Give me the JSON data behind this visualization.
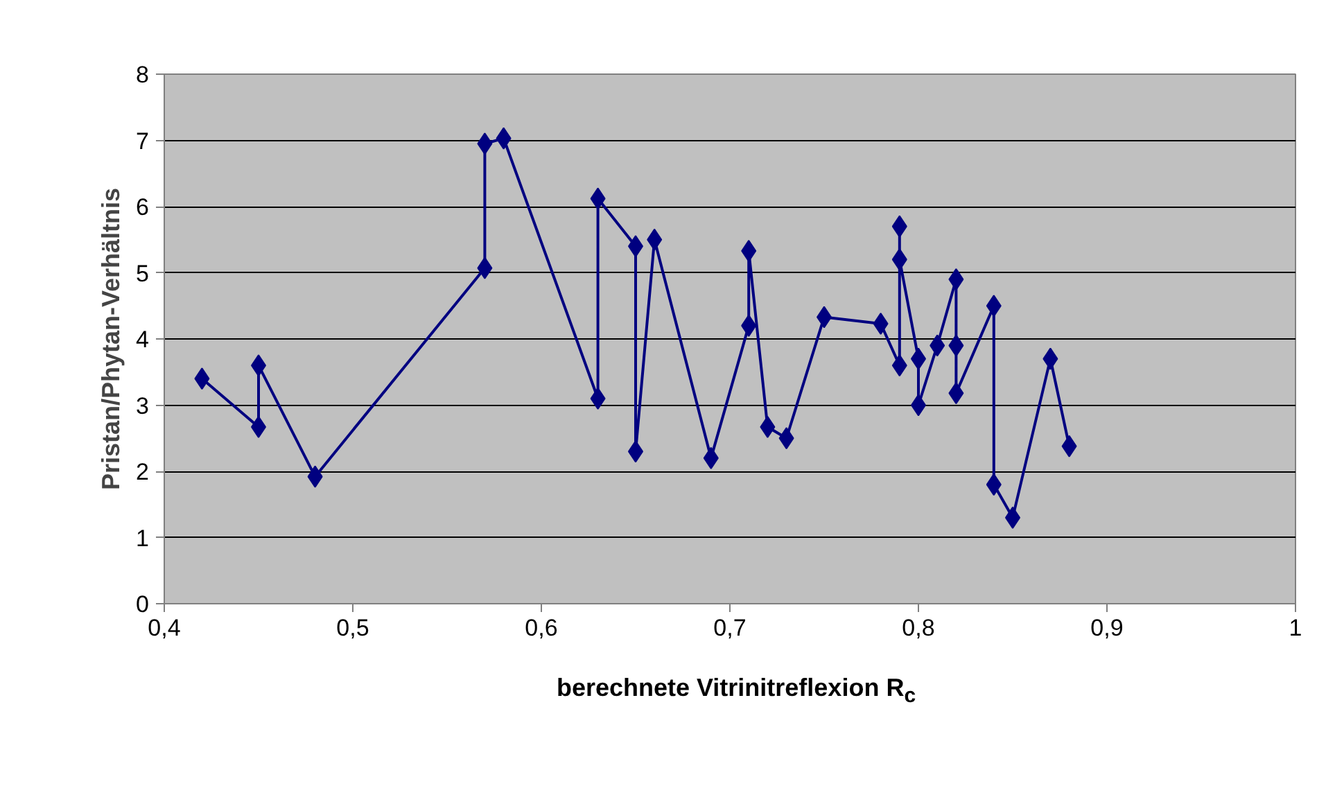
{
  "chart_data": {
    "type": "line",
    "xlabel": "berechnete Vitrinitreflexion R$_{c}$",
    "ylabel": "Pristan/Phytan-Verhältnis",
    "series": [
      {
        "color": "#000080",
        "x": [
          0.42,
          0.45,
          0.45,
          0.48,
          0.57,
          0.57,
          0.58,
          0.63,
          0.63,
          0.65,
          0.65,
          0.66,
          0.69,
          0.71,
          0.71,
          0.72,
          0.73,
          0.75,
          0.78,
          0.79,
          0.79,
          0.79,
          0.8,
          0.8,
          0.81,
          0.82,
          0.82,
          0.82,
          0.84,
          0.84,
          0.85,
          0.87,
          0.88
        ],
        "values": [
          3.4,
          2.67,
          3.6,
          1.92,
          5.07,
          6.95,
          7.03,
          3.1,
          6.12,
          5.4,
          2.3,
          5.5,
          2.2,
          4.2,
          5.33,
          2.67,
          2.5,
          4.33,
          4.23,
          3.6,
          5.7,
          5.2,
          3.7,
          3.0,
          3.9,
          4.9,
          3.9,
          3.18,
          4.5,
          1.8,
          1.3,
          3.7,
          2.38
        ]
      }
    ],
    "xlim": [
      0.4,
      1.0
    ],
    "ylim": [
      0,
      8
    ],
    "xticks": [
      {
        "value": 0.4,
        "label": "0,4"
      },
      {
        "value": 0.5,
        "label": "0,5"
      },
      {
        "value": 0.6,
        "label": "0,6"
      },
      {
        "value": 0.7,
        "label": "0,7"
      },
      {
        "value": 0.8,
        "label": "0,8"
      },
      {
        "value": 0.9,
        "label": "0,9"
      },
      {
        "value": 1.0,
        "label": "1"
      }
    ],
    "yticks": [
      0,
      1,
      2,
      3,
      4,
      5,
      6,
      7,
      8
    ],
    "grid": "y",
    "marker": "diamond",
    "line_style": "solid"
  }
}
